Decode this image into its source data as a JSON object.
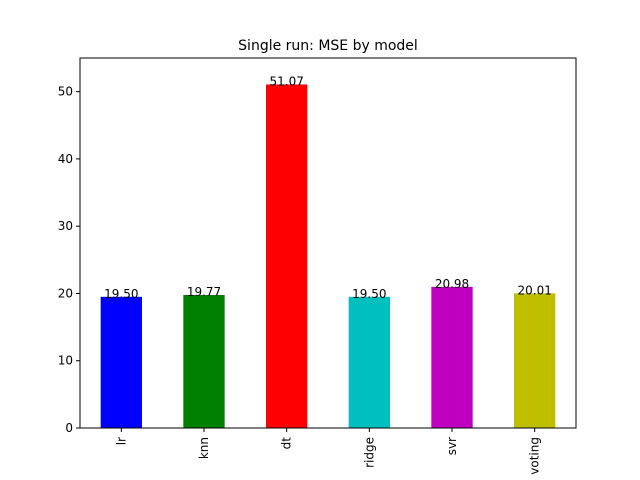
{
  "chart_data": {
    "type": "bar",
    "title": "Single run: MSE by model",
    "xlabel": "",
    "ylabel": "",
    "categories": [
      "lr",
      "knn",
      "dt",
      "ridge",
      "svr",
      "voting"
    ],
    "values": [
      19.5,
      19.77,
      51.07,
      19.5,
      20.98,
      20.01
    ],
    "value_labels": [
      "19.50",
      "19.77",
      "51.07",
      "19.50",
      "20.98",
      "20.01"
    ],
    "colors": [
      "#0000ff",
      "#008000",
      "#ff0000",
      "#00bfbf",
      "#bf00bf",
      "#bfbf00"
    ],
    "ylim": [
      0,
      55
    ],
    "yticks": [
      0,
      10,
      20,
      30,
      40,
      50
    ],
    "x_tick_rotation": "vertical",
    "grid": false,
    "legend": "none"
  }
}
